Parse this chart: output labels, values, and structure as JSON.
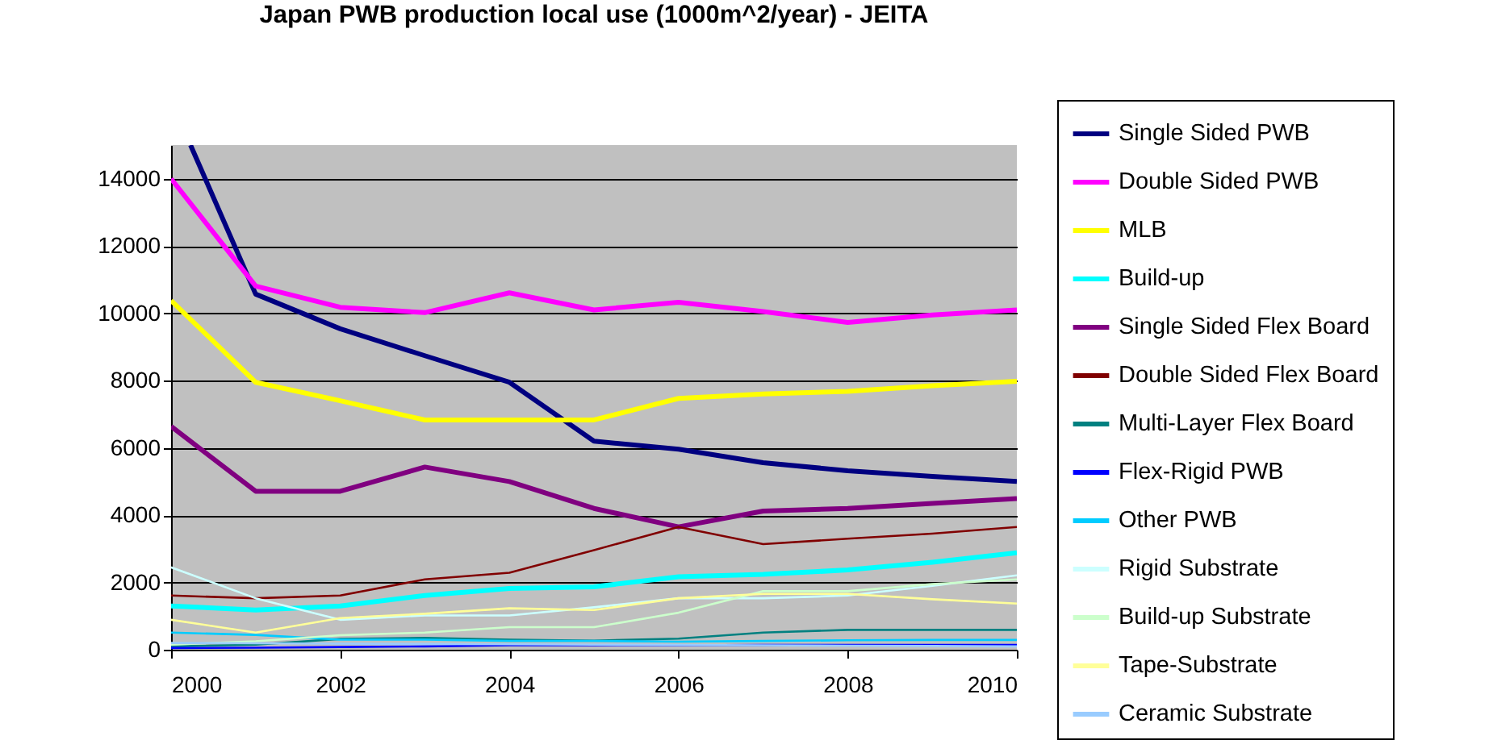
{
  "chart_data": {
    "type": "line",
    "title": "Japan PWB production local use (1000m^2/year) - JEITA",
    "x": [
      2000,
      2001,
      2002,
      2003,
      2004,
      2005,
      2006,
      2007,
      2008,
      2009,
      2010
    ],
    "xlim": [
      2000,
      2010
    ],
    "xticks": [
      2000,
      2002,
      2004,
      2006,
      2008,
      2010
    ],
    "ylim": [
      0,
      15000
    ],
    "yticks": [
      0,
      2000,
      4000,
      6000,
      8000,
      10000,
      12000,
      14000
    ],
    "grid": "y",
    "legend": "right",
    "marker": "none",
    "line_style": "solid",
    "series": [
      {
        "name": "Single Sided PWB",
        "color": "#000080",
        "x": [
          2000.23,
          2001,
          2002,
          2003,
          2004,
          2005,
          2006,
          2007,
          2008,
          2009,
          2010
        ],
        "values": [
          15000,
          10570,
          9540,
          8740,
          7950,
          6200,
          5960,
          5560,
          5320,
          5150,
          5000
        ]
      },
      {
        "name": "Double Sided PWB",
        "color": "#ff00ff",
        "values": [
          14000,
          10810,
          10180,
          10020,
          10610,
          10100,
          10330,
          10050,
          9730,
          9950,
          10100
        ]
      },
      {
        "name": "MLB",
        "color": "#ffff00",
        "values": [
          10380,
          7950,
          7400,
          6830,
          6830,
          6830,
          7470,
          7600,
          7680,
          7850,
          7980
        ]
      },
      {
        "name": "Build-up",
        "color": "#00ffff",
        "values": [
          1300,
          1180,
          1300,
          1610,
          1820,
          1870,
          2170,
          2240,
          2370,
          2600,
          2880
        ]
      },
      {
        "name": "Single Sided Flex Board",
        "color": "#800080",
        "values": [
          6640,
          4710,
          4710,
          5430,
          5000,
          4200,
          3650,
          4120,
          4200,
          4350,
          4490
        ]
      },
      {
        "name": "Double Sided Flex Board",
        "color": "#800000",
        "values": [
          1610,
          1530,
          1610,
          2090,
          2290,
          2960,
          3650,
          3140,
          3300,
          3450,
          3650
        ]
      },
      {
        "name": "Multi-Layer Flex Board",
        "color": "#008080",
        "values": [
          100,
          150,
          320,
          350,
          300,
          270,
          330,
          510,
          590,
          590,
          590
        ]
      },
      {
        "name": "Flex-Rigid PWB",
        "color": "#0000ff",
        "values": [
          50,
          60,
          80,
          100,
          130,
          130,
          130,
          140,
          140,
          140,
          140
        ]
      },
      {
        "name": "Other PWB",
        "color": "#00ccff",
        "values": [
          510,
          440,
          300,
          300,
          260,
          260,
          240,
          260,
          280,
          290,
          290
        ]
      },
      {
        "name": "Rigid Substrate",
        "color": "#ccffff",
        "values": [
          2450,
          1530,
          890,
          1020,
          1020,
          1260,
          1530,
          1530,
          1610,
          1900,
          2210
        ]
      },
      {
        "name": "Build-up Substrate",
        "color": "#ccffcc",
        "values": [
          150,
          250,
          430,
          510,
          670,
          670,
          1100,
          1740,
          1740,
          1950,
          2090
        ]
      },
      {
        "name": "Tape-Substrate",
        "color": "#ffff99",
        "values": [
          890,
          510,
          940,
          1070,
          1230,
          1180,
          1530,
          1660,
          1660,
          1500,
          1370
        ]
      },
      {
        "name": "Ceramic Substrate",
        "color": "#99ccff",
        "values": [
          200,
          190,
          180,
          170,
          160,
          150,
          140,
          130,
          120,
          110,
          100
        ]
      }
    ]
  }
}
